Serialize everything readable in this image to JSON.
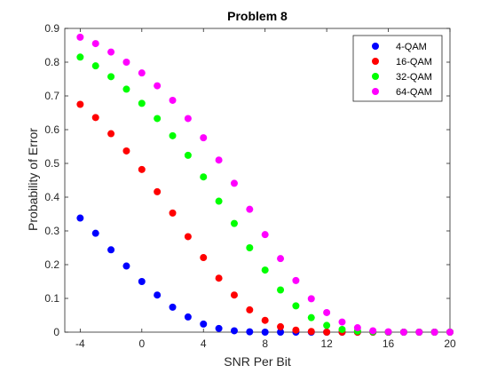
{
  "chart_data": {
    "type": "scatter",
    "title": "Problem 8",
    "xlabel": "SNR Per Bit",
    "ylabel": "Probability of Error",
    "xlim": [
      -5,
      20
    ],
    "ylim": [
      0,
      0.9
    ],
    "xticks": [
      -4,
      0,
      4,
      8,
      12,
      16,
      20
    ],
    "yticks": [
      0,
      0.1,
      0.2,
      0.3,
      0.4,
      0.5,
      0.6,
      0.7,
      0.8,
      0.9
    ],
    "grid": false,
    "legend": {
      "placement": "top-right"
    },
    "x": [
      -4,
      -3,
      -2,
      -1,
      0,
      1,
      2,
      3,
      4,
      5,
      6,
      7,
      8,
      9,
      10,
      11,
      12,
      13,
      14,
      15,
      16,
      17,
      18,
      19,
      20
    ],
    "series": [
      {
        "name": "4-QAM",
        "color": "#0000ff",
        "values": [
          0.338,
          0.293,
          0.244,
          0.196,
          0.15,
          0.11,
          0.074,
          0.045,
          0.024,
          0.011,
          0.004,
          0.001,
          0.0,
          0.0,
          0.0,
          0.0,
          0.0,
          0.0,
          0.0,
          0.0,
          0.0,
          0.0,
          0.0,
          0.0,
          0.0
        ]
      },
      {
        "name": "16-QAM",
        "color": "#ff0000",
        "values": [
          0.675,
          0.636,
          0.588,
          0.537,
          0.482,
          0.416,
          0.353,
          0.283,
          0.221,
          0.16,
          0.11,
          0.066,
          0.035,
          0.016,
          0.006,
          0.002,
          0.0,
          0.0,
          0.0,
          0.0,
          0.0,
          0.0,
          0.0,
          0.0,
          0.0
        ]
      },
      {
        "name": "32-QAM",
        "color": "#00ff00",
        "values": [
          0.815,
          0.789,
          0.757,
          0.72,
          0.678,
          0.633,
          0.582,
          0.524,
          0.46,
          0.388,
          0.322,
          0.25,
          0.184,
          0.125,
          0.078,
          0.043,
          0.02,
          0.008,
          0.003,
          0.001,
          0.0,
          0.0,
          0.0,
          0.0,
          0.0
        ]
      },
      {
        "name": "64-QAM",
        "color": "#ff00ff",
        "values": [
          0.874,
          0.855,
          0.83,
          0.8,
          0.768,
          0.73,
          0.687,
          0.633,
          0.576,
          0.51,
          0.441,
          0.364,
          0.289,
          0.218,
          0.153,
          0.099,
          0.058,
          0.03,
          0.013,
          0.004,
          0.001,
          0.0,
          0.0,
          0.0,
          0.0
        ]
      }
    ]
  }
}
